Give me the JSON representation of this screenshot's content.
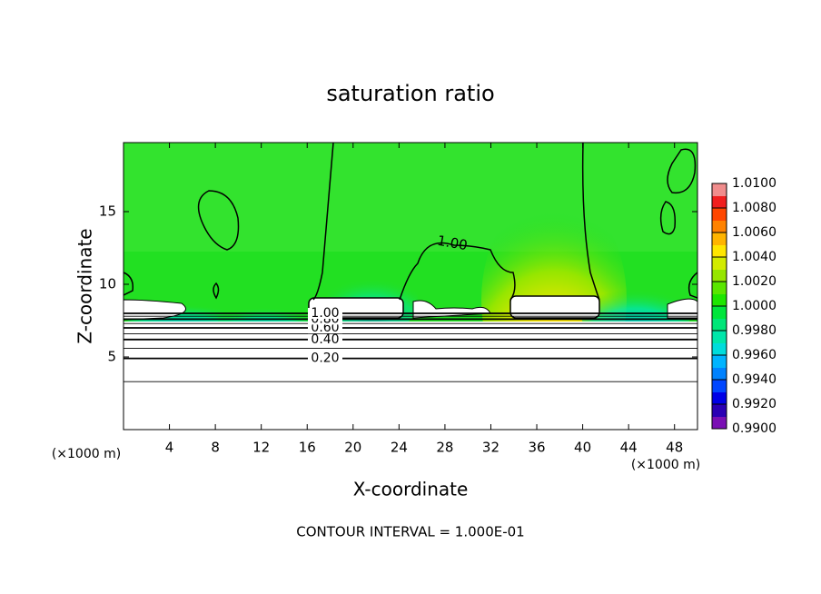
{
  "chart_data": {
    "type": "contour",
    "title": "saturation ratio",
    "x_label": "X-coordinate",
    "y_label": "Z-coordinate",
    "x_unit": "(×1000 m)",
    "footer": "CONTOUR INTERVAL = 1.000E-01",
    "xlim": [
      0,
      50
    ],
    "ylim": [
      0,
      19.75
    ],
    "xticks": [
      4,
      8,
      12,
      16,
      20,
      24,
      28,
      32,
      36,
      40,
      44,
      48
    ],
    "yticks": [
      5,
      10,
      15
    ],
    "contours": {
      "levels": [
        0.1,
        0.2,
        0.3,
        0.4,
        0.5,
        0.6,
        0.7,
        0.8,
        0.9,
        1.0
      ],
      "z": [
        3.3,
        4.9,
        5.6,
        6.2,
        6.6,
        7.0,
        7.3,
        7.6,
        7.8,
        8.0
      ],
      "labels": [
        null,
        "0.20",
        null,
        "0.40",
        null,
        "0.60",
        null,
        "0.80",
        null,
        "1.00"
      ]
    },
    "annotation": "1.00",
    "clim": [
      0.99,
      1.01
    ],
    "colorbar_colors": [
      "#7a0fb4",
      "#2a00b4",
      "#0000e6",
      "#0046ff",
      "#0082ff",
      "#00b4ff",
      "#00dcdc",
      "#00e6aa",
      "#00e678",
      "#00e63c",
      "#1ee600",
      "#5ae600",
      "#96e600",
      "#d2eb00",
      "#ffe600",
      "#ffb400",
      "#ff8200",
      "#ff4600",
      "#f01e1e",
      "#f08c8c"
    ],
    "colorbar_ticks": [
      {
        "value": 0.99,
        "label": "0.9900"
      },
      {
        "value": 0.992,
        "label": "0.9920"
      },
      {
        "value": 0.994,
        "label": "0.9940"
      },
      {
        "value": 0.996,
        "label": "0.9960"
      },
      {
        "value": 0.998,
        "label": "0.9980"
      },
      {
        "value": 1.0,
        "label": "1.0000"
      },
      {
        "value": 1.002,
        "label": "1.0020"
      },
      {
        "value": 1.004,
        "label": "1.0040"
      },
      {
        "value": 1.006,
        "label": "1.0060"
      },
      {
        "value": 1.008,
        "label": "1.0080"
      },
      {
        "value": 1.01,
        "label": "1.0100"
      }
    ]
  }
}
